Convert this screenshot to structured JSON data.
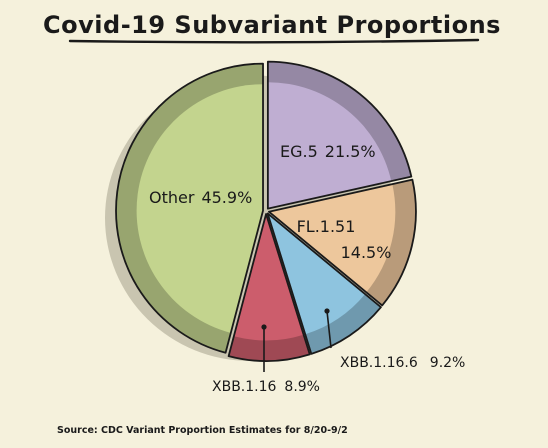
{
  "chart_data": {
    "type": "pie",
    "title": "Covid-19 Subvariant Proportions",
    "source": "Source: CDC Variant Proportion Estimates for 8/20-9/2",
    "slices": [
      {
        "label": "EG.5",
        "value": 21.5,
        "value_text": "21.5%",
        "color": "#bfaed2"
      },
      {
        "label": "FL.1.51",
        "value": 14.5,
        "value_text": "14.5%",
        "color": "#edc79c"
      },
      {
        "label": "XBB.1.16.6",
        "value": 9.2,
        "value_text": "9.2%",
        "color": "#8ec4df"
      },
      {
        "label": "XBB.1.16",
        "value": 8.9,
        "value_text": "8.9%",
        "color": "#cc5d6c"
      },
      {
        "label": "Other",
        "value": 45.9,
        "value_text": "45.9%",
        "color": "#c3d48e"
      }
    ]
  }
}
